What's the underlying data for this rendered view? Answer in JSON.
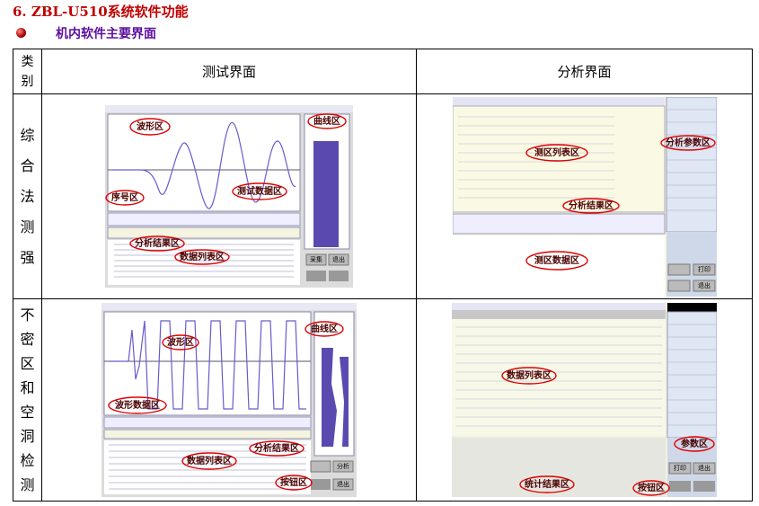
{
  "heading": "6. ZBL-U510系统软件功能",
  "subheading": "机内软件主要界面",
  "table": {
    "headers": [
      "类别",
      "测试界面",
      "分析界面"
    ],
    "rows": [
      {
        "category": "综合法测强",
        "test": {
          "callouts": [
            "波形区",
            "曲线区",
            "序号区",
            "测试数据区",
            "分析结果区",
            "数据列表区"
          ],
          "buttons": [
            "采集",
            "退出"
          ]
        },
        "analysis": {
          "callouts": [
            "测区列表区",
            "分析参数区",
            "分析结果区",
            "测区数据区"
          ],
          "buttons": [
            "打印",
            "退出"
          ]
        }
      },
      {
        "category": "不密区和空洞检测",
        "test": {
          "callouts": [
            "波形区",
            "曲线区",
            "波形数据区",
            "分析结果区",
            "数据列表区",
            "按钮区"
          ],
          "buttons": [
            "分析",
            "退出"
          ]
        },
        "analysis": {
          "callouts": [
            "数据列表区",
            "参数区",
            "统计结果区",
            "按钮区"
          ],
          "buttons": [
            "打印",
            "退出"
          ]
        }
      }
    ]
  }
}
